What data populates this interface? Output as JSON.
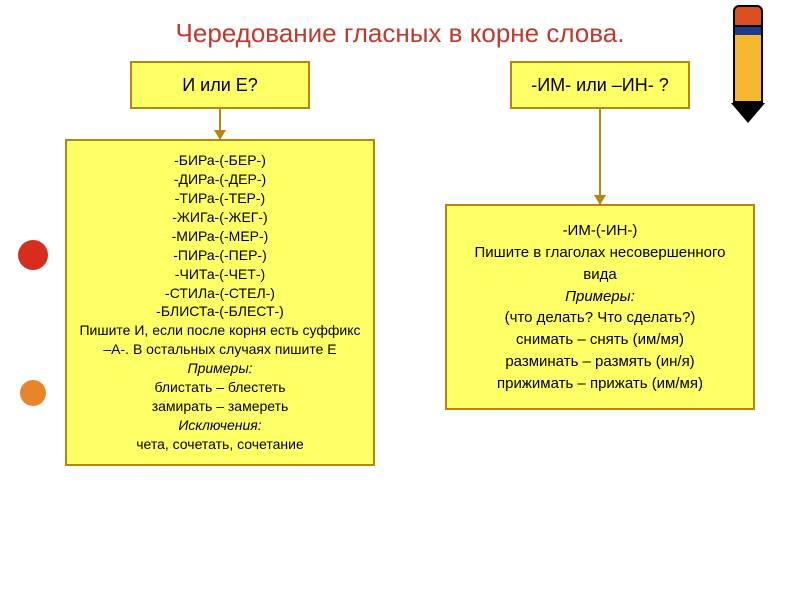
{
  "title": {
    "text": "Чередование гласных в корне слова.",
    "color": "#c0392b",
    "fontsize": 26
  },
  "left": {
    "header": "И или Е?",
    "roots": [
      "-БИРа-(-БЕР-)",
      "-ДИРа-(-ДЕР-)",
      "-ТИРа-(-ТЕР-)",
      "-ЖИГа-(-ЖЕГ-)",
      "-МИРа-(-МЕР-)",
      "-ПИРа-(-ПЕР-)",
      "-ЧИТа-(-ЧЕТ-)",
      "-СТИЛа-(-СТЕЛ-)",
      "-БЛИСТа-(-БЛЕСТ-)"
    ],
    "rule": "Пишите И, если после корня есть суффикс –А-. В остальных случаях пишите Е",
    "examples_label": "Примеры:",
    "examples": [
      "блистать – блестеть",
      "замирать – замереть"
    ],
    "exceptions_label": "Исключения:",
    "exceptions": "чета, сочетать, сочетание"
  },
  "right": {
    "header": "-ИМ- или –ИН- ?",
    "root_line": "-ИМ-(-ИН-)",
    "rule": "Пишите в глаголах несовершенного вида",
    "examples_label": "Примеры:",
    "question": "(что делать? Что сделать?)",
    "examples": [
      "снимать – снять (им/мя)",
      "разминать – размять (ин/я)",
      "прижимать – прижать (им/мя)"
    ]
  },
  "colors": {
    "box_bg": "#ffff66",
    "box_border": "#b8860b",
    "title": "#c0392b",
    "text": "#000000"
  }
}
